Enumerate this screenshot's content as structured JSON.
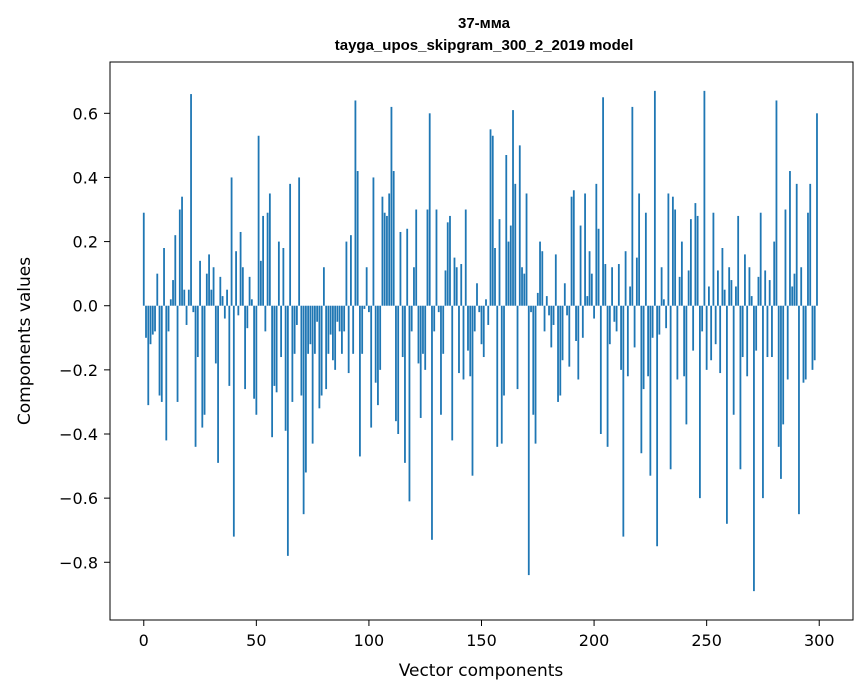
{
  "chart_data": {
    "type": "bar",
    "title": "37-мма",
    "subtitle": "tayga_upos_skipgram_300_2_2019 model",
    "xlabel": "Vector components",
    "ylabel": "Components values",
    "xlim": [
      -15,
      315
    ],
    "ylim": [
      -0.98,
      0.76
    ],
    "xticks": [
      0,
      50,
      100,
      150,
      200,
      250,
      300
    ],
    "xtick_labels": [
      "0",
      "50",
      "100",
      "150",
      "200",
      "250",
      "300"
    ],
    "yticks": [
      -0.8,
      -0.6,
      -0.4,
      -0.2,
      0.0,
      0.2,
      0.4,
      0.6
    ],
    "ytick_labels": [
      "−0.8",
      "−0.6",
      "−0.4",
      "−0.2",
      "0.0",
      "0.2",
      "0.4",
      "0.6"
    ],
    "grid": false,
    "bar_color": "#1f77b4",
    "values": [
      0.29,
      -0.1,
      -0.31,
      -0.12,
      -0.09,
      -0.08,
      0.1,
      -0.28,
      -0.3,
      0.18,
      -0.42,
      -0.08,
      0.02,
      0.08,
      0.22,
      -0.3,
      0.3,
      0.34,
      0.05,
      -0.06,
      0.05,
      0.66,
      -0.02,
      -0.44,
      -0.16,
      0.14,
      -0.38,
      -0.34,
      0.1,
      0.16,
      0.05,
      0.12,
      -0.18,
      -0.49,
      0.09,
      0.03,
      -0.04,
      0.05,
      -0.25,
      0.4,
      -0.72,
      0.17,
      -0.03,
      0.23,
      0.12,
      -0.26,
      -0.07,
      0.09,
      0.02,
      -0.29,
      -0.34,
      0.53,
      0.14,
      0.28,
      -0.08,
      0.29,
      0.35,
      -0.41,
      -0.25,
      -0.27,
      0.2,
      -0.16,
      0.18,
      -0.39,
      -0.78,
      0.38,
      -0.3,
      -0.15,
      -0.06,
      0.4,
      -0.28,
      -0.65,
      -0.52,
      -0.15,
      -0.12,
      -0.43,
      -0.15,
      -0.05,
      -0.32,
      -0.28,
      0.12,
      -0.26,
      -0.15,
      -0.09,
      -0.17,
      -0.2,
      -0.05,
      -0.08,
      -0.15,
      -0.08,
      0.2,
      -0.21,
      0.22,
      -0.15,
      0.64,
      0.42,
      -0.47,
      -0.15,
      -0.01,
      0.12,
      -0.02,
      -0.38,
      0.4,
      -0.24,
      -0.31,
      -0.2,
      0.34,
      0.29,
      0.28,
      0.35,
      0.62,
      0.42,
      -0.36,
      -0.4,
      0.23,
      -0.16,
      -0.49,
      0.24,
      -0.61,
      -0.08,
      0.12,
      0.3,
      -0.18,
      -0.35,
      -0.15,
      -0.2,
      0.3,
      0.6,
      -0.73,
      -0.08,
      0.3,
      -0.02,
      -0.34,
      -0.15,
      0.11,
      0.26,
      0.28,
      -0.42,
      0.15,
      0.12,
      -0.21,
      0.13,
      -0.23,
      0.3,
      -0.14,
      -0.22,
      -0.53,
      -0.08,
      0.07,
      -0.02,
      -0.12,
      -0.16,
      0.02,
      -0.06,
      0.55,
      0.53,
      0.18,
      -0.44,
      0.27,
      -0.43,
      -0.28,
      0.47,
      0.2,
      0.25,
      0.61,
      0.38,
      -0.26,
      0.5,
      0.12,
      0.1,
      0.35,
      -0.84,
      -0.02,
      -0.34,
      -0.43,
      0.04,
      0.2,
      0.17,
      -0.08,
      0.03,
      -0.03,
      -0.13,
      -0.06,
      0.16,
      -0.3,
      -0.28,
      -0.17,
      0.07,
      -0.03,
      -0.19,
      0.34,
      0.36,
      -0.11,
      -0.23,
      0.25,
      -0.1,
      0.35,
      0.03,
      0.17,
      0.1,
      -0.04,
      0.38,
      0.24,
      -0.4,
      0.65,
      0.13,
      -0.44,
      -0.12,
      0.12,
      -0.05,
      -0.08,
      0.13,
      -0.2,
      -0.72,
      0.17,
      -0.22,
      0.06,
      0.62,
      -0.13,
      0.15,
      0.35,
      -0.46,
      -0.26,
      0.29,
      -0.22,
      -0.53,
      -0.1,
      0.67,
      -0.75,
      -0.09,
      0.12,
      0.02,
      -0.07,
      0.35,
      -0.51,
      0.34,
      0.3,
      -0.23,
      0.09,
      0.2,
      -0.22,
      -0.37,
      0.11,
      0.27,
      -0.14,
      0.32,
      0.28,
      -0.6,
      -0.08,
      0.67,
      -0.2,
      0.06,
      -0.17,
      0.29,
      -0.12,
      0.11,
      -0.21,
      0.18,
      0.05,
      -0.68,
      0.12,
      0.08,
      -0.34,
      0.06,
      0.28,
      -0.51,
      -0.16,
      0.16,
      -0.22,
      0.12,
      0.03,
      -0.89,
      -0.14,
      0.09,
      0.29,
      -0.6,
      0.11,
      -0.16,
      0.08,
      -0.16,
      0.2,
      0.64,
      -0.44,
      -0.54,
      -0.37,
      0.3,
      -0.23,
      0.42,
      0.06,
      0.1,
      0.38,
      -0.65,
      0.12,
      -0.24,
      -0.23,
      0.29,
      0.38,
      -0.2,
      -0.17,
      0.6
    ]
  }
}
